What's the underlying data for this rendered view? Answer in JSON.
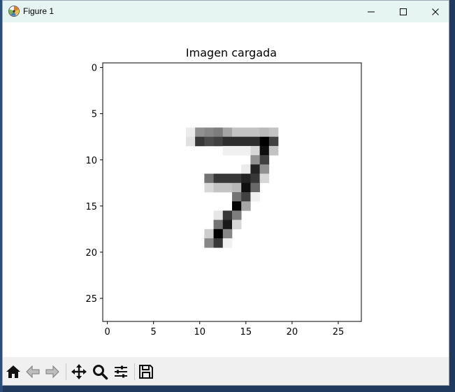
{
  "window": {
    "title": "Figure 1",
    "app_icon": "matplotlib-icon",
    "controls": [
      "minimize-icon",
      "maximize-icon",
      "close-icon"
    ]
  },
  "toolbar": {
    "buttons": [
      "home-icon",
      "back-arrow-icon",
      "forward-arrow-icon",
      "pan-move-icon",
      "zoom-magnifier-icon",
      "configure-subplots-icon",
      "save-floppy-icon"
    ]
  },
  "chart_data": {
    "type": "heatmap",
    "title": "Imagen cargada",
    "xlabel": "",
    "ylabel": "",
    "xticks": [
      0,
      5,
      10,
      15,
      20,
      25
    ],
    "yticks": [
      0,
      5,
      10,
      15,
      20,
      25
    ],
    "xlim": [
      -0.5,
      27.5
    ],
    "ylim": [
      27.5,
      -0.5
    ],
    "grid": false,
    "colormap": "Greys",
    "value_range": [
      0,
      255
    ],
    "size": [
      28,
      28
    ],
    "pixels": [
      {
        "r": 7,
        "c": 9,
        "v": 20
      },
      {
        "r": 7,
        "c": 10,
        "v": 110
      },
      {
        "r": 7,
        "c": 11,
        "v": 120
      },
      {
        "r": 7,
        "c": 12,
        "v": 130
      },
      {
        "r": 7,
        "c": 13,
        "v": 90
      },
      {
        "r": 7,
        "c": 14,
        "v": 60
      },
      {
        "r": 7,
        "c": 15,
        "v": 60
      },
      {
        "r": 7,
        "c": 16,
        "v": 60
      },
      {
        "r": 7,
        "c": 17,
        "v": 70
      },
      {
        "r": 7,
        "c": 18,
        "v": 60
      },
      {
        "r": 8,
        "c": 9,
        "v": 30
      },
      {
        "r": 8,
        "c": 10,
        "v": 200
      },
      {
        "r": 8,
        "c": 11,
        "v": 180
      },
      {
        "r": 8,
        "c": 12,
        "v": 190
      },
      {
        "r": 8,
        "c": 13,
        "v": 210
      },
      {
        "r": 8,
        "c": 14,
        "v": 210
      },
      {
        "r": 8,
        "c": 15,
        "v": 210
      },
      {
        "r": 8,
        "c": 16,
        "v": 210
      },
      {
        "r": 8,
        "c": 17,
        "v": 255
      },
      {
        "r": 8,
        "c": 18,
        "v": 190
      },
      {
        "r": 9,
        "c": 13,
        "v": 15
      },
      {
        "r": 9,
        "c": 14,
        "v": 15
      },
      {
        "r": 9,
        "c": 15,
        "v": 15
      },
      {
        "r": 9,
        "c": 16,
        "v": 40
      },
      {
        "r": 9,
        "c": 17,
        "v": 240
      },
      {
        "r": 9,
        "c": 18,
        "v": 60
      },
      {
        "r": 10,
        "c": 16,
        "v": 110
      },
      {
        "r": 10,
        "c": 17,
        "v": 190
      },
      {
        "r": 11,
        "c": 15,
        "v": 20
      },
      {
        "r": 11,
        "c": 16,
        "v": 220
      },
      {
        "r": 11,
        "c": 17,
        "v": 110
      },
      {
        "r": 12,
        "c": 11,
        "v": 140
      },
      {
        "r": 12,
        "c": 12,
        "v": 200
      },
      {
        "r": 12,
        "c": 13,
        "v": 200
      },
      {
        "r": 12,
        "c": 14,
        "v": 200
      },
      {
        "r": 12,
        "c": 15,
        "v": 220
      },
      {
        "r": 12,
        "c": 16,
        "v": 200
      },
      {
        "r": 12,
        "c": 17,
        "v": 40
      },
      {
        "r": 13,
        "c": 11,
        "v": 40
      },
      {
        "r": 13,
        "c": 12,
        "v": 60
      },
      {
        "r": 13,
        "c": 13,
        "v": 60
      },
      {
        "r": 13,
        "c": 14,
        "v": 70
      },
      {
        "r": 13,
        "c": 15,
        "v": 240
      },
      {
        "r": 13,
        "c": 16,
        "v": 150
      },
      {
        "r": 14,
        "c": 14,
        "v": 140
      },
      {
        "r": 14,
        "c": 15,
        "v": 190
      },
      {
        "r": 14,
        "c": 16,
        "v": 15
      },
      {
        "r": 15,
        "c": 14,
        "v": 250
      },
      {
        "r": 15,
        "c": 15,
        "v": 90
      },
      {
        "r": 16,
        "c": 12,
        "v": 25
      },
      {
        "r": 16,
        "c": 13,
        "v": 200
      },
      {
        "r": 16,
        "c": 14,
        "v": 130
      },
      {
        "r": 17,
        "c": 12,
        "v": 140
      },
      {
        "r": 17,
        "c": 13,
        "v": 230
      },
      {
        "r": 17,
        "c": 14,
        "v": 40
      },
      {
        "r": 18,
        "c": 11,
        "v": 50
      },
      {
        "r": 18,
        "c": 12,
        "v": 255
      },
      {
        "r": 18,
        "c": 13,
        "v": 120
      },
      {
        "r": 19,
        "c": 11,
        "v": 120
      },
      {
        "r": 19,
        "c": 12,
        "v": 200
      },
      {
        "r": 19,
        "c": 13,
        "v": 15
      }
    ]
  },
  "colors": {
    "titlebar_bg": "#e6f4f2",
    "toolbar_bg": "#f0f0f0",
    "axes_edge": "#000000",
    "background": "#ffffff"
  }
}
